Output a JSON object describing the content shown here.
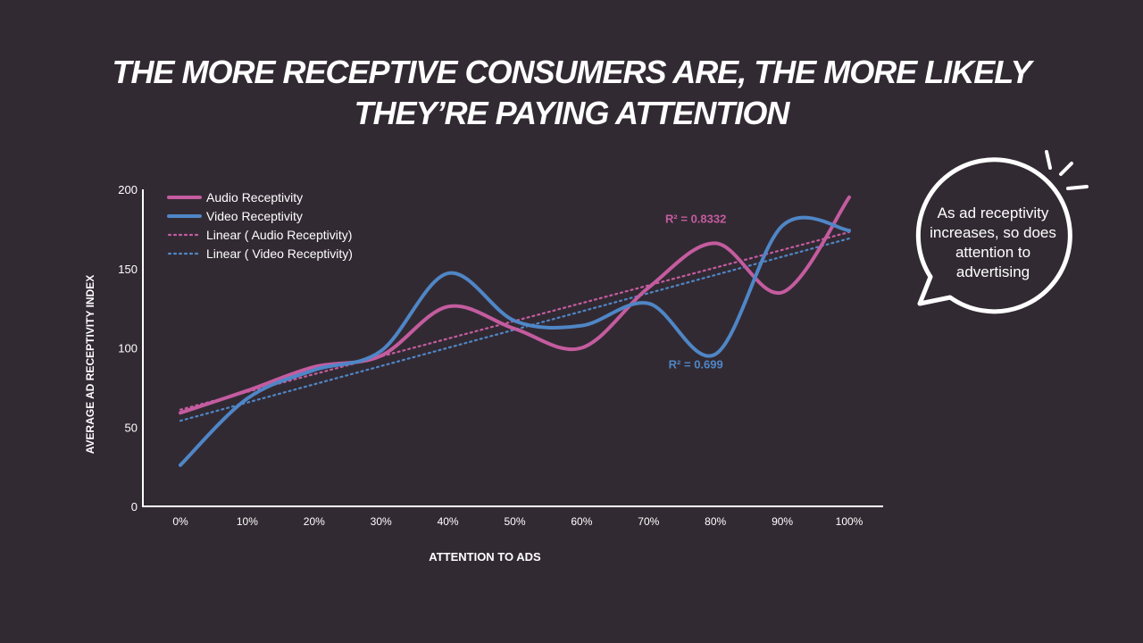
{
  "title": {
    "line1": "THE MORE RECEPTIVE CONSUMERS ARE, THE MORE LIKELY",
    "line2": "THEY’RE PAYING ATTENTION"
  },
  "callout": {
    "lines": [
      "As ad receptivity",
      "increases, so does",
      "attention to",
      "advertising"
    ]
  },
  "chart_data": {
    "type": "line",
    "categories": [
      "0%",
      "10%",
      "20%",
      "30%",
      "40%",
      "50%",
      "60%",
      "70%",
      "80%",
      "90%",
      "100%"
    ],
    "series": [
      {
        "name": "Audio Receptivity",
        "color": "#c45c9f",
        "values": [
          59,
          73,
          88,
          95,
          126,
          112,
          100,
          138,
          166,
          135,
          195
        ]
      },
      {
        "name": "Video Receptivity",
        "color": "#4f86c6",
        "values": [
          26,
          68,
          86,
          98,
          147,
          117,
          114,
          128,
          96,
          177,
          174
        ]
      }
    ],
    "trendlines": [
      {
        "name": "Linear ( Audio Receptivity)",
        "color": "#c45c9f",
        "start": 61,
        "end": 173
      },
      {
        "name": "Linear ( Video Receptivity)",
        "color": "#4f86c6",
        "start": 54,
        "end": 169
      }
    ],
    "annotations": [
      {
        "text": "R² = 0.8332",
        "color": "#c45c9f",
        "anchor_category": "80%",
        "value": 179
      },
      {
        "text": "R² = 0.699",
        "color": "#4f86c6",
        "anchor_category": "80%",
        "value": 87
      }
    ],
    "yticks": [
      "0",
      "50",
      "100",
      "150",
      "200"
    ],
    "ylim": [
      0,
      200
    ],
    "xlabel": "ATTENTION TO ADS",
    "ylabel": "AVERAGE AD RECEPTIVITY INDEX",
    "legend": "top-left"
  }
}
